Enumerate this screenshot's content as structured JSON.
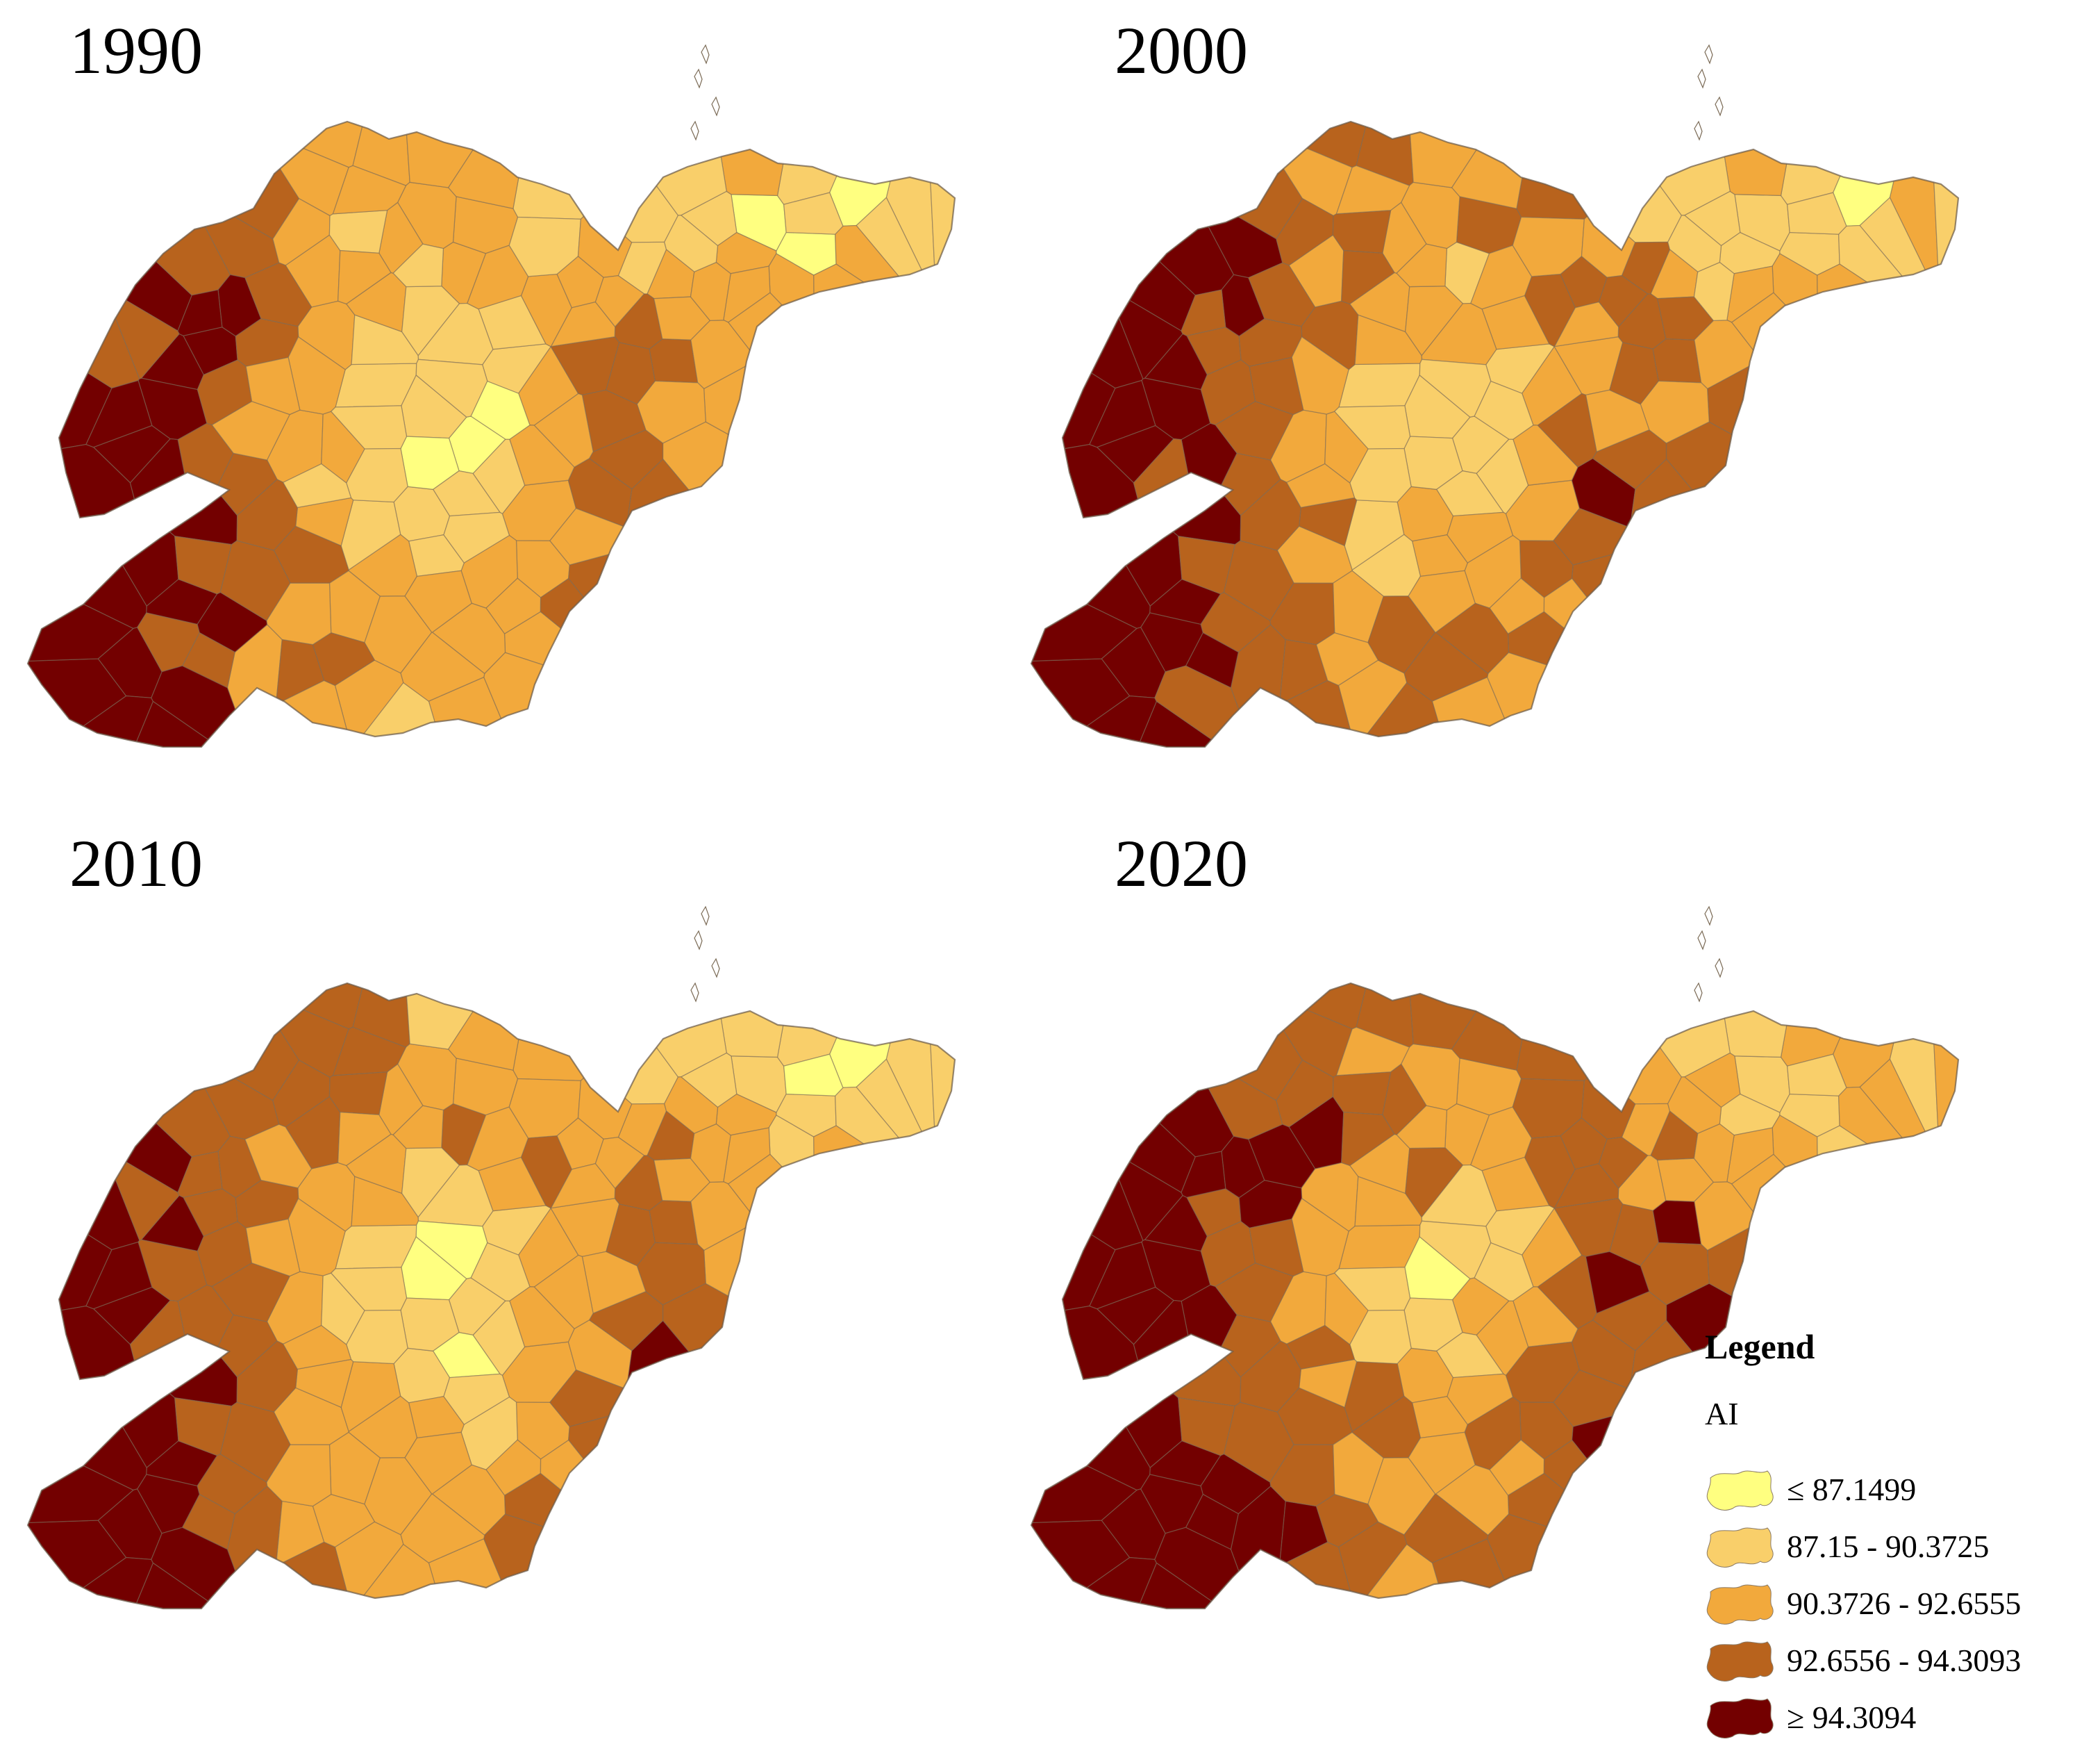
{
  "panels": [
    {
      "year": "1990",
      "seed": 11,
      "shift": 0.0
    },
    {
      "year": "2000",
      "seed": 23,
      "shift": 0.35
    },
    {
      "year": "2010",
      "seed": 37,
      "shift": 0.1
    },
    {
      "year": "2020",
      "seed": 51,
      "shift": 0.6
    }
  ],
  "legend": {
    "title": "Legend",
    "field": "AI",
    "classes": [
      {
        "label": "≤ 87.1499",
        "color": "#ffff80"
      },
      {
        "label": "87.15 - 90.3725",
        "color": "#f9cf6a"
      },
      {
        "label": "90.3726 - 92.6555",
        "color": "#f2a93c"
      },
      {
        "label": "92.6556 - 94.3093",
        "color": "#b8631d"
      },
      {
        "label": "≥ 94.3094",
        "color": "#730000"
      }
    ]
  }
}
